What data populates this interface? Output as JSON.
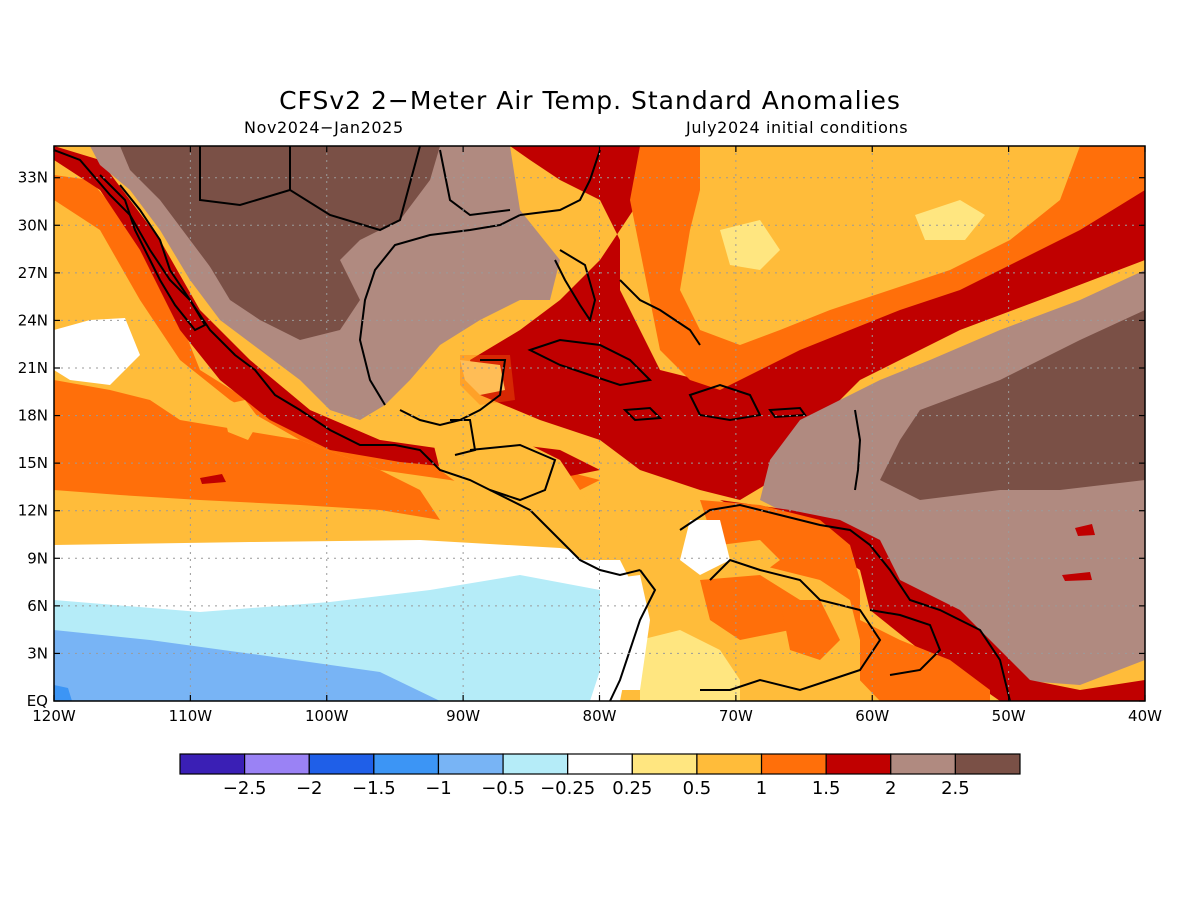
{
  "title": "CFSv2 2−Meter Air Temp. Standard Anomalies",
  "subtitle_left": "Nov2024−Jan2025",
  "subtitle_right": "July2024 initial conditions",
  "lat_labels": [
    "33N",
    "30N",
    "27N",
    "24N",
    "21N",
    "18N",
    "15N",
    "12N",
    "9N",
    "6N",
    "3N",
    "EQ"
  ],
  "lon_labels": [
    "120W",
    "110W",
    "100W",
    "90W",
    "80W",
    "70W",
    "60W",
    "50W",
    "40W"
  ],
  "colorbar": {
    "colors": [
      "#3a1fb5",
      "#9a82f5",
      "#1f5fe8",
      "#3c95f5",
      "#78b4f5",
      "#b5ecf8",
      "#ffffff",
      "#ffe680",
      "#ffbc3a",
      "#ff6f0a",
      "#c00000",
      "#b08a80",
      "#7a5046"
    ],
    "labels": [
      "−2.5",
      "−2",
      "−1.5",
      "−1",
      "−0.5",
      "−0.25",
      "0.25",
      "0.5",
      "1",
      "1.5",
      "2",
      "2.5"
    ]
  },
  "chart_data": {
    "type": "heatmap",
    "title": "CFSv2 2−Meter Air Temp. Standard Anomalies",
    "period": "Nov2024−Jan2025",
    "initial_conditions": "July2024 initial conditions",
    "xlim": [
      -120,
      -40
    ],
    "ylim": [
      0,
      35
    ],
    "grid": true,
    "colorbar_levels": [
      -2.5,
      -2,
      -1.5,
      -1,
      -0.5,
      -0.25,
      0.25,
      0.5,
      1,
      1.5,
      2,
      2.5
    ]
  }
}
